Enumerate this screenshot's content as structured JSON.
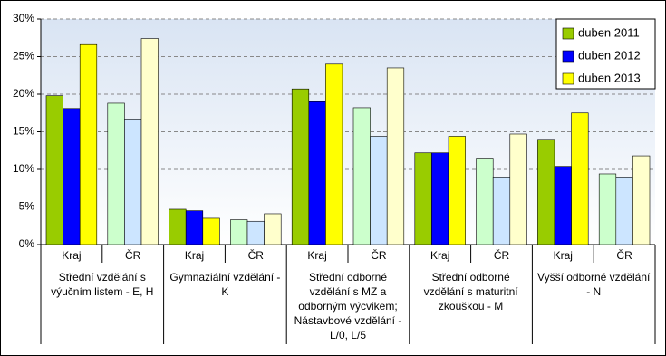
{
  "chart_data": {
    "type": "bar",
    "categories": [
      "Kraj",
      "ČR",
      "Kraj",
      "ČR",
      "Kraj",
      "ČR",
      "Kraj",
      "ČR",
      "Kraj",
      "ČR"
    ],
    "groups": [
      "Střední vzdělání s výučním listem - E, H",
      "Gymnaziální vzdělání - K",
      "Střední odborné vzdělání s MZ a odborným výcvikem; Nástavbové vzdělání - L/0, L/5",
      "Střední odborné vzdělání s maturitní zkouškou - M",
      "Vyšší odborné vzdělání - N"
    ],
    "series": [
      {
        "name": "duben 2011",
        "color": "#99cc00",
        "color_cr": "#ccffcc",
        "values": [
          19.8,
          18.8,
          4.7,
          3.3,
          20.7,
          18.2,
          12.2,
          11.5,
          14.0,
          9.4
        ]
      },
      {
        "name": "duben 2012",
        "color": "#0000ff",
        "color_cr": "#cce5ff",
        "values": [
          18.1,
          16.7,
          4.5,
          3.1,
          19.0,
          14.4,
          12.2,
          9.0,
          10.4,
          9.0
        ]
      },
      {
        "name": "duben 2013",
        "color": "#ffff00",
        "color_cr": "#ffffcc",
        "values": [
          26.6,
          27.4,
          3.5,
          4.1,
          24.0,
          23.5,
          14.4,
          14.7,
          17.5,
          11.8
        ]
      }
    ],
    "ylim": [
      0,
      30
    ],
    "yticks": [
      {
        "value": 0,
        "label": "0%"
      },
      {
        "value": 5,
        "label": "5%"
      },
      {
        "value": 10,
        "label": "10%"
      },
      {
        "value": 15,
        "label": "15%"
      },
      {
        "value": 20,
        "label": "20%"
      },
      {
        "value": 25,
        "label": "25%"
      },
      {
        "value": 30,
        "label": "30%"
      }
    ],
    "grid": true,
    "legend": "top-right"
  }
}
